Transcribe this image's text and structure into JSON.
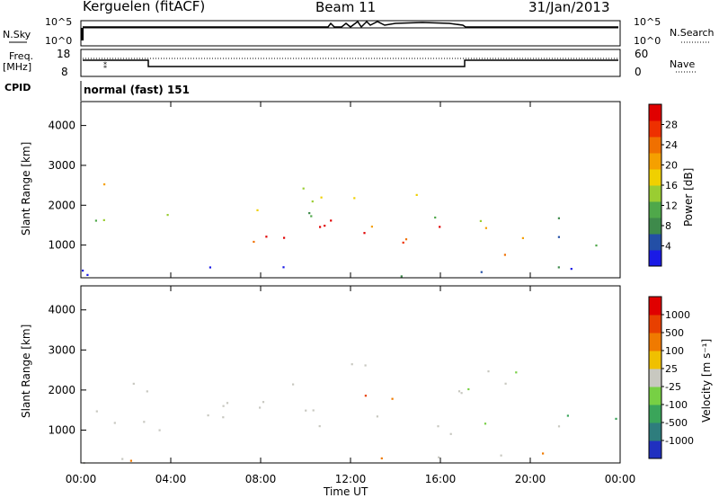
{
  "header": {
    "station": "Kerguelen (fitACF)",
    "beam": "Beam 11",
    "date": "31/Jan/2013"
  },
  "top_panels": {
    "nsky_label": "N.Sky",
    "nsky_ticks": [
      "10^5",
      "10^0"
    ],
    "nsearch_label": "N.Search",
    "nsearch_ticks": [
      "10^5",
      "10^0"
    ],
    "freq_label": [
      "Freq.",
      "[MHz]"
    ],
    "freq_ticks": [
      "18",
      "8"
    ],
    "nave_label": "Nave",
    "nave_ticks": [
      "60",
      "0"
    ],
    "cpid_label": "CPID",
    "cpid_value": "normal (fast) 151"
  },
  "chart_data": [
    {
      "type": "heatmap",
      "panel": "power",
      "ylabel": "Slant Range [km]",
      "xlabel": "",
      "y_ticks": [
        1000,
        2000,
        3000,
        4000
      ],
      "ylim": [
        180,
        4600
      ],
      "x_range_hours": [
        0,
        24
      ],
      "colorbar": {
        "label": "Power [dB]",
        "ticks": [
          "4",
          "8",
          "12",
          "16",
          "20",
          "24",
          "28"
        ],
        "colors": [
          "#1a1ae6",
          "#234fa6",
          "#3e8a4b",
          "#4fa84a",
          "#9acd32",
          "#f0d000",
          "#f5a000",
          "#f07000",
          "#ee3000",
          "#e00000"
        ]
      },
      "regions": [
        {
          "t0": 1.0,
          "t1": 3.0,
          "r0": 1950,
          "r1": 2600,
          "level": 0.7
        },
        {
          "t0": 0.0,
          "t1": 3.0,
          "r0": 1200,
          "r1": 1800,
          "level": 0.3
        },
        {
          "t0": 3.0,
          "t1": 17.0,
          "r0": 1000,
          "r1": 1700,
          "level": 0.85
        },
        {
          "t0": 3.0,
          "t1": 17.0,
          "r0": 1700,
          "r1": 2000,
          "level": 0.4
        },
        {
          "t0": 8.0,
          "t1": 16.0,
          "r0": 1900,
          "r1": 2500,
          "level": 0.45
        },
        {
          "t0": 16.2,
          "t1": 19.0,
          "r0": 700,
          "r1": 900,
          "level": 0.7
        },
        {
          "t0": 17.0,
          "t1": 20.0,
          "r0": 1100,
          "r1": 2000,
          "level": 0.5
        },
        {
          "t0": 21.0,
          "t1": 24.0,
          "r0": 900,
          "r1": 1700,
          "level": 0.35
        },
        {
          "t0": 0.0,
          "t1": 24.0,
          "r0": 200,
          "r1": 500,
          "level": 0.1
        }
      ]
    },
    {
      "type": "heatmap",
      "panel": "velocity",
      "ylabel": "Slant Range [km]",
      "xlabel": "Time UT",
      "y_ticks": [
        1000,
        2000,
        3000,
        4000
      ],
      "ylim": [
        180,
        4600
      ],
      "x_ticks": [
        "00:00",
        "04:00",
        "08:00",
        "12:00",
        "16:00",
        "20:00",
        "00:00"
      ],
      "x_range_hours": [
        0,
        24
      ],
      "colorbar": {
        "label": "Velocity [m s⁻¹]",
        "ticks": [
          "1000",
          "500",
          "100",
          "25",
          "-25",
          "-100",
          "-500",
          "-1000"
        ],
        "colors": [
          "#2030c0",
          "#2e7d7d",
          "#3aa55a",
          "#77d044",
          "#c8c8c0",
          "#f0c000",
          "#f07a00",
          "#e84000",
          "#e00000"
        ]
      },
      "regions": [
        {
          "t0": 0.0,
          "t1": 3.0,
          "r0": 1200,
          "r1": 2600,
          "level": 0.5
        },
        {
          "t0": 3.0,
          "t1": 17.0,
          "r0": 900,
          "r1": 2000,
          "level": 0.5
        },
        {
          "t0": 9.0,
          "t1": 14.0,
          "r0": 2100,
          "r1": 2700,
          "level": 0.5
        },
        {
          "t0": 16.5,
          "t1": 20.0,
          "r0": 1100,
          "r1": 2500,
          "level": 0.55
        },
        {
          "t0": 21.0,
          "t1": 24.0,
          "r0": 900,
          "r1": 1700,
          "level": 0.4
        },
        {
          "t0": 0.0,
          "t1": 24.0,
          "r0": 200,
          "r1": 450,
          "level": 0.55
        }
      ]
    }
  ]
}
